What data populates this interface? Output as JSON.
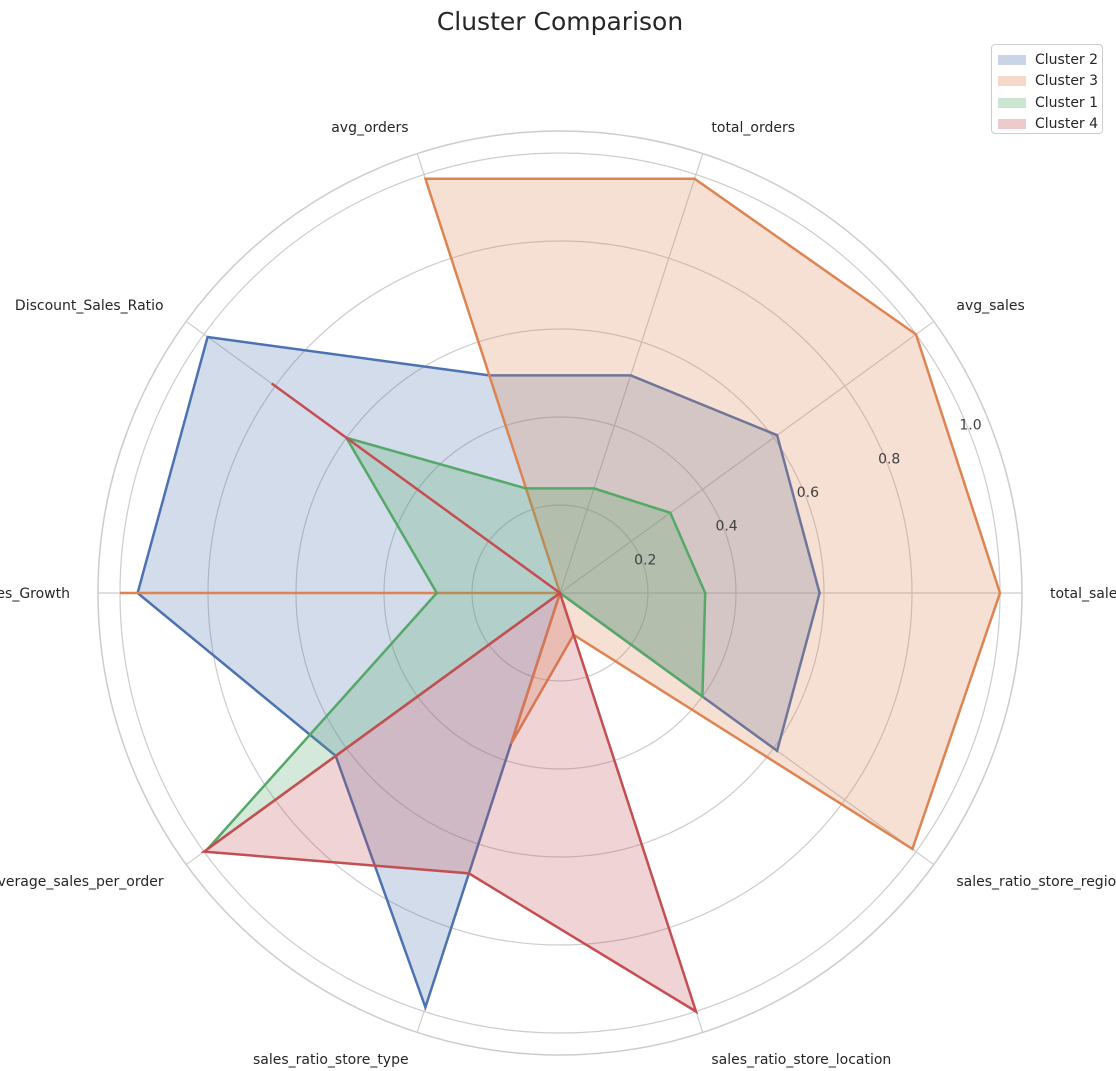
{
  "chart_data": {
    "type": "radar",
    "title": "Cluster Comparison",
    "categories": [
      "total_sales",
      "avg_sales",
      "total_orders",
      "avg_orders",
      "Discount_Sales_Ratio",
      "Avg_Sales_Growth",
      "average_sales_per_order",
      "sales_ratio_store_type",
      "sales_ratio_store_location",
      "sales_ratio_store_region"
    ],
    "rticks": [
      "0.2",
      "0.4",
      "0.6",
      "0.8",
      "1.0"
    ],
    "rlim": [
      0,
      1.05
    ],
    "grid": true,
    "legend_position": "top-right",
    "series": [
      {
        "name": "Cluster 2",
        "color": "#4c72b0",
        "values": [
          0.59,
          0.61,
          0.52,
          0.52,
          0.99,
          0.96,
          0.63,
          0.99,
          0.0,
          0.61
        ]
      },
      {
        "name": "Cluster 3",
        "color": "#dd8452",
        "values": [
          1.0,
          1.0,
          0.99,
          0.99,
          0.0,
          1.0,
          0.0,
          0.36,
          0.1,
          0.99
        ]
      },
      {
        "name": "Cluster 1",
        "color": "#55a868",
        "values": [
          0.33,
          0.31,
          0.25,
          0.25,
          0.6,
          0.28,
          0.99,
          0.0,
          0.0,
          0.4
        ]
      },
      {
        "name": "Cluster 4",
        "color": "#c44e52",
        "values": [
          0.0,
          0.0,
          0.0,
          0.0,
          0.81,
          0.0,
          1.0,
          0.67,
          1.0,
          0.0
        ]
      }
    ]
  }
}
